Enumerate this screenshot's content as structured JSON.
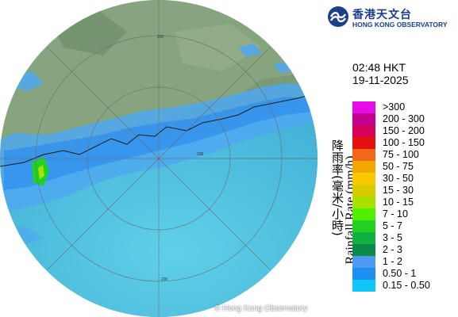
{
  "radar": {
    "copyright": "© Hong Kong Observatory",
    "range_labels": [
      "200",
      "200",
      "200"
    ]
  },
  "logo": {
    "name_zh": "香港天文台",
    "name_en": "HONG KONG OBSERVATORY",
    "mark_color": "#1b3f8b"
  },
  "timestamp": {
    "time": "02:48 HKT",
    "date": "19-11-2025"
  },
  "legend": {
    "title_zh": "降雨率(毫米/小時)",
    "title_en": "Rainfall Rate (mm/h)",
    "items": [
      {
        "label": ">300",
        "color": "#e80ce8"
      },
      {
        "label": "200 - 300",
        "color": "#c40090"
      },
      {
        "label": "150 - 200",
        "color": "#d4005a"
      },
      {
        "label": "100 - 150",
        "color": "#e61010"
      },
      {
        "label": "75 - 100",
        "color": "#f06818"
      },
      {
        "label": "50 - 75",
        "color": "#f0a800"
      },
      {
        "label": "30 - 50",
        "color": "#f8c800"
      },
      {
        "label": "15 - 30",
        "color": "#d6cc00"
      },
      {
        "label": "10 - 15",
        "color": "#a8e000"
      },
      {
        "label": "7 - 10",
        "color": "#50f000"
      },
      {
        "label": "5 - 7",
        "color": "#22d222"
      },
      {
        "label": "3 - 5",
        "color": "#12b040"
      },
      {
        "label": "2 - 3",
        "color": "#0a8a4a"
      },
      {
        "label": "1 - 2",
        "color": "#4d9af0"
      },
      {
        "label": "0.50 - 1",
        "color": "#1e8ef0"
      },
      {
        "label": "0.15 - 0.50",
        "color": "#10c8f8"
      }
    ]
  }
}
